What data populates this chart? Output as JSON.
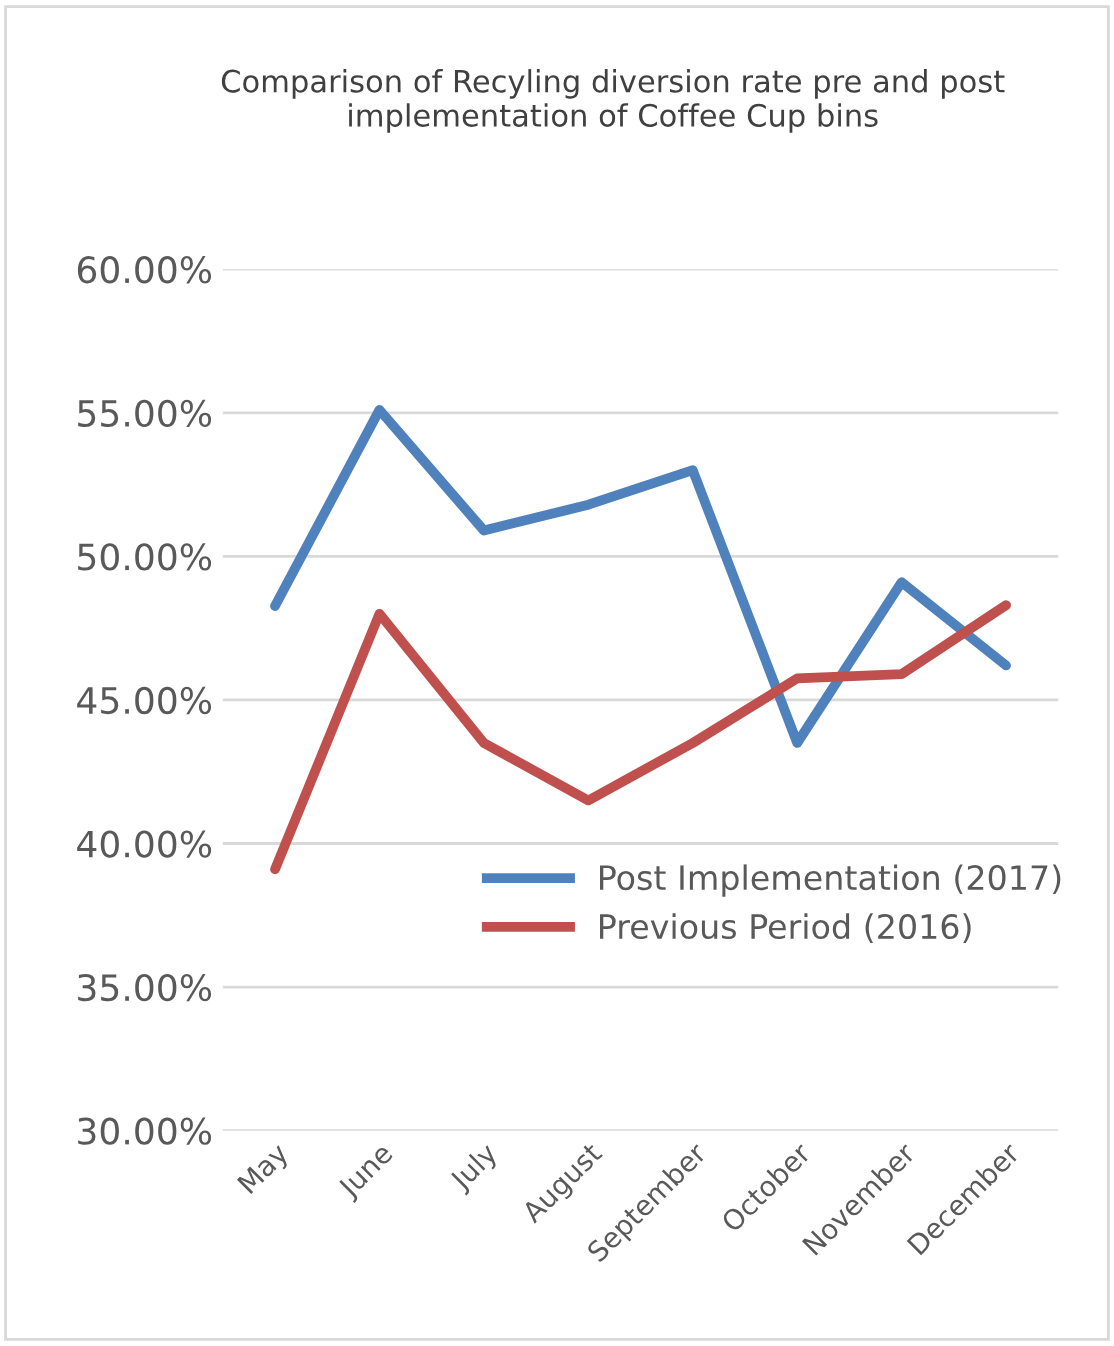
{
  "chart_data": {
    "type": "line",
    "title": "Comparison of Recyling diversion rate pre and post implementation of Coffee Cup bins",
    "categories": [
      "May",
      "June",
      "July",
      "August",
      "September",
      "October",
      "November",
      "December"
    ],
    "series": [
      {
        "name": "Post Implementation (2017)",
        "color": "#4f81bd",
        "values": [
          48.27,
          55.1,
          50.9,
          51.8,
          53.0,
          43.5,
          49.1,
          46.2
        ]
      },
      {
        "name": "Previous Period (2016)",
        "color": "#c0504d",
        "values": [
          39.1,
          48.0,
          43.5,
          41.5,
          43.5,
          45.75,
          45.9,
          48.3
        ]
      }
    ],
    "ylim": [
      30,
      60
    ],
    "yticks": [
      {
        "value": 30,
        "label": "30.00%"
      },
      {
        "value": 35,
        "label": "35.00%"
      },
      {
        "value": 40,
        "label": "40.00%"
      },
      {
        "value": 45,
        "label": "45.00%"
      },
      {
        "value": 50,
        "label": "50.00%"
      },
      {
        "value": 55,
        "label": "55.00%"
      },
      {
        "value": 60,
        "label": "60.00%"
      }
    ],
    "grid": "y",
    "legend": "bottom",
    "marker": "none",
    "line_style": "solid"
  }
}
